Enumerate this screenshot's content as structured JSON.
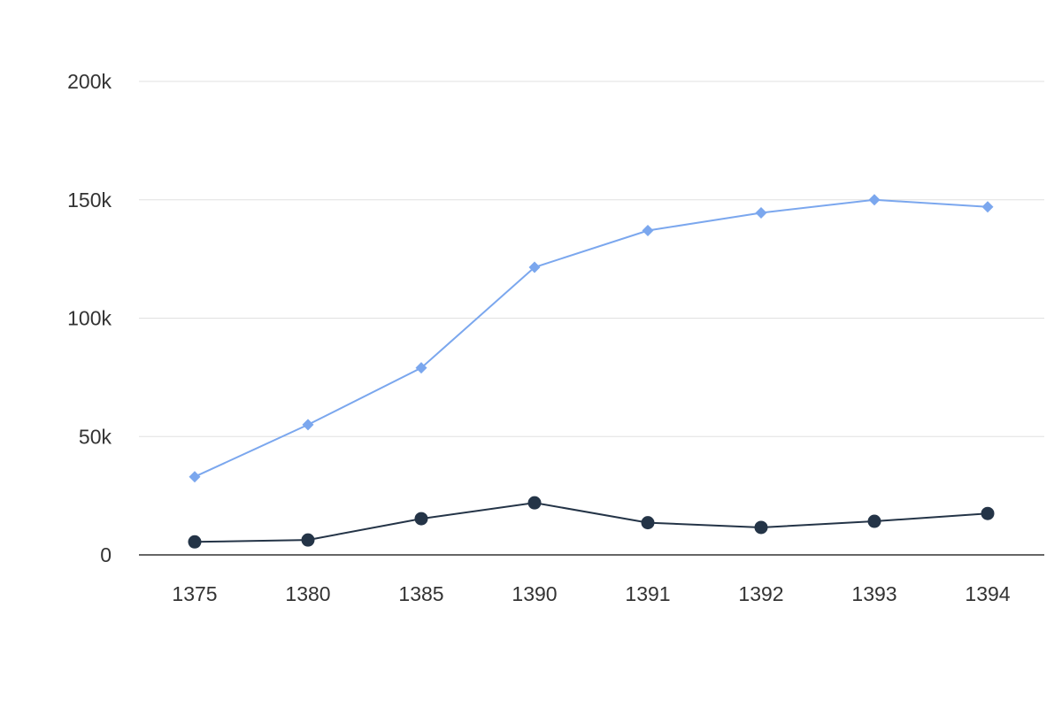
{
  "chart_data": {
    "type": "line",
    "categories": [
      "1375",
      "1380",
      "1385",
      "1390",
      "1391",
      "1392",
      "1393",
      "1394"
    ],
    "series": [
      {
        "values": [
          33000,
          55000,
          79000,
          121500,
          137000,
          144500,
          150000,
          147000
        ],
        "color": "#7ba7ee",
        "marker": "diamond"
      },
      {
        "values": [
          5500,
          6300,
          15300,
          22000,
          13600,
          11600,
          14200,
          17500
        ],
        "color": "#243447",
        "marker": "circle"
      }
    ],
    "ylim": [
      0,
      200000
    ],
    "yticks": [
      {
        "value": 0,
        "label": "0"
      },
      {
        "value": 50000,
        "label": "50k"
      },
      {
        "value": 100000,
        "label": "100k"
      },
      {
        "value": 150000,
        "label": "150k"
      },
      {
        "value": 200000,
        "label": "200k"
      }
    ],
    "grid": true,
    "legend": "none"
  }
}
